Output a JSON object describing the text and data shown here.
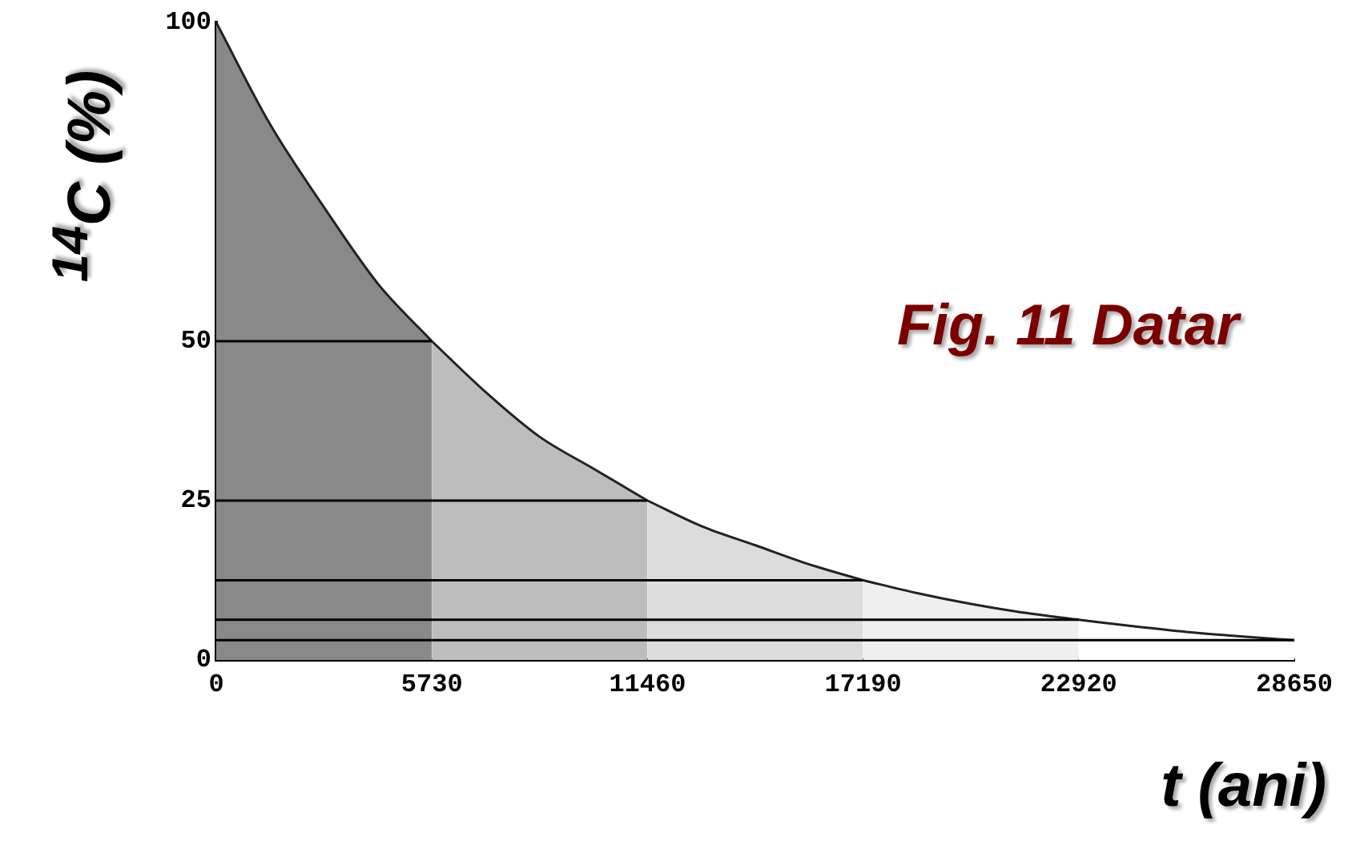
{
  "chart_data": {
    "type": "area",
    "title": "Fig. 11 Datar",
    "xlabel": "t (ani)",
    "ylabel": "$^{14}$C (%)",
    "xlim": [
      0,
      28650
    ],
    "xticks": [
      0,
      5730,
      11460,
      17190,
      22920,
      28650
    ],
    "ylim": [
      0,
      100
    ],
    "yticks": [
      0,
      25,
      50,
      100
    ],
    "grid": false,
    "legend": false,
    "series": [
      {
        "color": "#898989",
        "x": [
          0,
          1432,
          2865,
          4298,
          5730
        ],
        "values": [
          100,
          84,
          71,
          59,
          50
        ]
      },
      {
        "color": "#bdbdbd",
        "x": [
          5730,
          7162,
          8595,
          10028,
          11460
        ],
        "values": [
          50,
          42,
          35,
          30,
          25
        ]
      },
      {
        "color": "#dcdcdc",
        "x": [
          11460,
          12892,
          14325,
          15758,
          17190
        ],
        "values": [
          25,
          21,
          18,
          15,
          12.5
        ]
      },
      {
        "color": "#efefef",
        "x": [
          17190,
          18622,
          20055,
          21488,
          22920
        ],
        "values": [
          12.5,
          10.5,
          8.8,
          7.4,
          6.3
        ]
      },
      {
        "color": "#ffffff",
        "x": [
          22920,
          24352,
          25785,
          27218,
          28650
        ],
        "values": [
          6.3,
          5.3,
          4.4,
          3.7,
          3.1
        ]
      },
      {
        "type": "line",
        "color": "#000000",
        "x": [
          0,
          5730
        ],
        "values": [
          50,
          50
        ]
      },
      {
        "type": "line",
        "color": "#000000",
        "x": [
          0,
          11460
        ],
        "values": [
          25,
          25
        ]
      },
      {
        "type": "line",
        "color": "#000000",
        "x": [
          0,
          17190
        ],
        "values": [
          12.5,
          12.5
        ]
      },
      {
        "type": "line",
        "color": "#000000",
        "x": [
          0,
          22920
        ],
        "values": [
          6.3,
          6.3
        ]
      },
      {
        "type": "line",
        "color": "#000000",
        "x": [
          0,
          28650
        ],
        "values": [
          3.1,
          3.1
        ]
      }
    ]
  }
}
